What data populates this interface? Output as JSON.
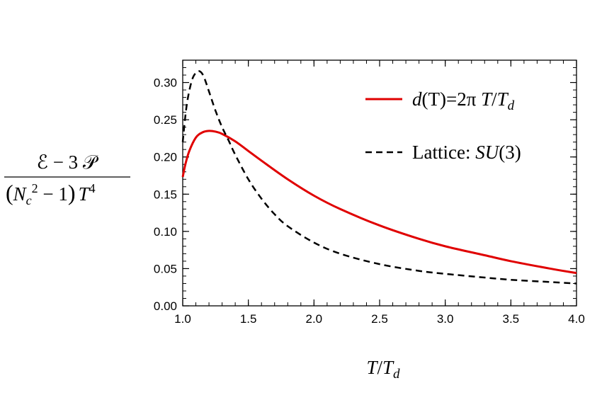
{
  "chart_data": {
    "type": "line",
    "xlabel": "T/T_d",
    "ylabel_parts": {
      "numerator": "ℰ − 3 𝒫",
      "den_open": "(",
      "den_N": "N",
      "den_c": "c",
      "den_2": "2",
      "den_minus1": " − 1",
      "den_close": ")",
      "den_T": "T",
      "den_4": "4"
    },
    "xlim": [
      1.0,
      4.0
    ],
    "ylim": [
      0.0,
      0.33
    ],
    "x_ticks": [
      "1.0",
      "1.5",
      "2.0",
      "2.5",
      "3.0",
      "3.5",
      "4.0"
    ],
    "y_ticks": [
      "0.00",
      "0.05",
      "0.10",
      "0.15",
      "0.20",
      "0.25",
      "0.30"
    ],
    "legend_position": "top-right",
    "series": [
      {
        "name": "d(T)=2π T/T_d",
        "legend": {
          "pre": "d",
          "mid": "(T)=2π ",
          "var": "T",
          "slash": "/",
          "T2": "T",
          "sub": "d"
        },
        "color": "#e00000",
        "style": "solid",
        "x": [
          1.0,
          1.02,
          1.05,
          1.1,
          1.15,
          1.2,
          1.25,
          1.3,
          1.4,
          1.5,
          1.6,
          1.8,
          2.0,
          2.2,
          2.5,
          2.8,
          3.0,
          3.3,
          3.5,
          3.8,
          4.0
        ],
        "y": [
          0.173,
          0.19,
          0.208,
          0.226,
          0.233,
          0.235,
          0.234,
          0.231,
          0.221,
          0.208,
          0.195,
          0.17,
          0.148,
          0.13,
          0.108,
          0.09,
          0.08,
          0.068,
          0.06,
          0.05,
          0.044
        ]
      },
      {
        "name": "Lattice: SU(3)",
        "legend": {
          "pre": "Lattice: ",
          "var": "SU",
          "post": "(3)"
        },
        "color": "#000000",
        "style": "dashed",
        "x": [
          1.0,
          1.02,
          1.04,
          1.07,
          1.1,
          1.13,
          1.16,
          1.2,
          1.25,
          1.3,
          1.35,
          1.4,
          1.5,
          1.6,
          1.7,
          1.8,
          2.0,
          2.2,
          2.5,
          2.8,
          3.0,
          3.3,
          3.5,
          3.8,
          4.0
        ],
        "y": [
          0.22,
          0.255,
          0.28,
          0.303,
          0.313,
          0.315,
          0.308,
          0.288,
          0.262,
          0.24,
          0.222,
          0.203,
          0.17,
          0.144,
          0.123,
          0.107,
          0.085,
          0.07,
          0.056,
          0.047,
          0.043,
          0.038,
          0.035,
          0.032,
          0.03
        ]
      }
    ]
  }
}
